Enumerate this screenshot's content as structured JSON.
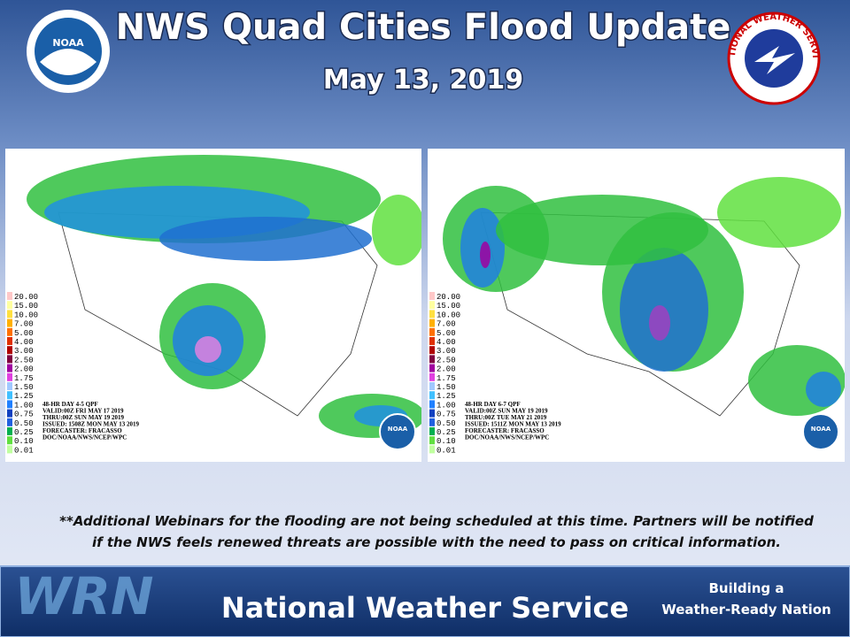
{
  "header": {
    "title": "NWS Quad Cities Flood Update",
    "date": "May 13, 2019",
    "logo_left": "NOAA",
    "logo_right": "NATIONAL WEATHER SERVICE"
  },
  "maps": [
    {
      "legend": [
        "20.00",
        "15.00",
        "10.00",
        "7.00",
        "5.00",
        "4.00",
        "3.00",
        "2.50",
        "2.00",
        "1.75",
        "1.50",
        "1.25",
        "1.00",
        "0.75",
        "0.50",
        "0.25",
        "0.10",
        "0.01"
      ],
      "caption": [
        "48-HR DAY 4-5 QPF",
        "VALID:00Z FRI MAY 17 2019",
        "THRU:00Z SUN MAY 19 2019",
        "ISSUED: 1508Z MON MAY 13 2019",
        "FORECASTER: FRACASSO",
        "DOC/NOAA/NWS/NCEP/WPC"
      ],
      "badge": "NOAA"
    },
    {
      "legend": [
        "20.00",
        "15.00",
        "10.00",
        "7.00",
        "5.00",
        "4.00",
        "3.00",
        "2.50",
        "2.00",
        "1.75",
        "1.50",
        "1.25",
        "1.00",
        "0.75",
        "0.50",
        "0.25",
        "0.10",
        "0.01"
      ],
      "caption": [
        "48-HR DAY 6-7 QPF",
        "VALID:00Z SUN MAY 19 2019",
        "THRU:00Z TUE MAY 21 2019",
        "ISSUED: 1511Z MON MAY 13 2019",
        "FORECASTER: FRACASSO",
        "DOC/NOAA/NWS/NCEP/WPC"
      ],
      "badge": "NOAA"
    }
  ],
  "note": {
    "lines": [
      "**Additional  Webinars  for the flooding are not being scheduled  at this time.  Partners will be notified",
      "if the NWS feels renewed threats are possible with the need to pass on critical information."
    ]
  },
  "footer": {
    "logo": "WRN",
    "title": "National Weather Service",
    "tagline": [
      "Building a",
      "Weather-Ready Nation"
    ]
  }
}
